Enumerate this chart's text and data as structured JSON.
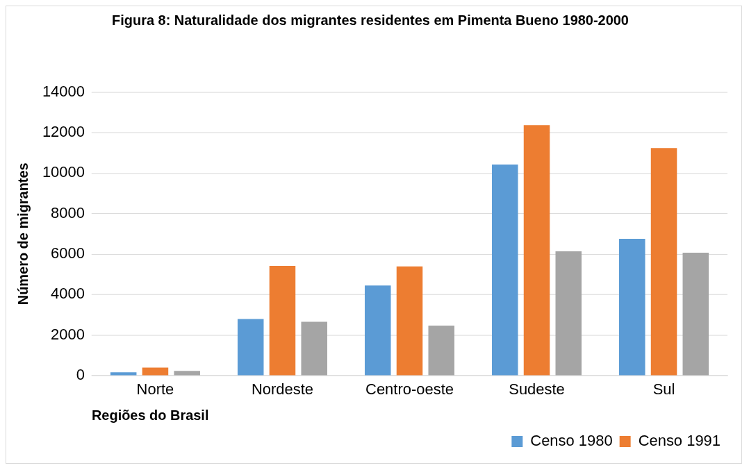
{
  "chart_data": {
    "type": "bar",
    "title": "Figura 8: Naturalidade dos migrantes residentes em Pimenta Bueno 1980-2000",
    "xlabel": "Regiões do Brasil",
    "ylabel": "Número de migrantes",
    "categories": [
      "Norte",
      "Nordeste",
      "Centro-oeste",
      "Sudeste",
      "Sul"
    ],
    "series": [
      {
        "name": "Censo 1980",
        "color": "#5b9bd5",
        "values": [
          160,
          2790,
          4450,
          10420,
          6750
        ]
      },
      {
        "name": "Censo 1991",
        "color": "#ed7d31",
        "values": [
          390,
          5420,
          5390,
          12370,
          11240
        ]
      },
      {
        "color": "#a5a5a5",
        "values": [
          230,
          2660,
          2470,
          6140,
          6070
        ]
      }
    ],
    "ylim": [
      0,
      14000
    ],
    "yticks": [
      0,
      2000,
      4000,
      6000,
      8000,
      10000,
      12000,
      14000
    ],
    "grid": "y",
    "legend": "bottom right"
  }
}
